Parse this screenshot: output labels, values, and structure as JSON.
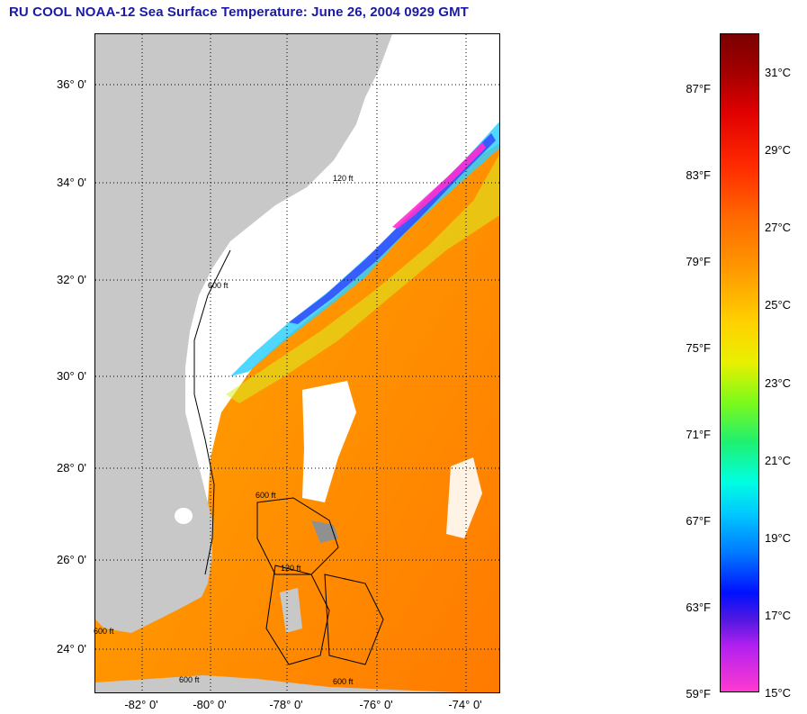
{
  "title": "RU COOL  NOAA-12  Sea Surface Temperature:  June 26, 2004 0929 GMT",
  "map": {
    "lat_ticks": [
      "36° 0'",
      "34° 0'",
      "32° 0'",
      "30° 0'",
      "28° 0'",
      "26° 0'",
      "24° 0'"
    ],
    "lon_ticks": [
      "-82° 0'",
      "-80° 0'",
      "-78° 0'",
      "-76° 0'",
      "-74° 0'"
    ],
    "contour_labels": [
      "600 ft",
      "120 ft",
      "600 ft",
      "120 ft",
      "600 ft",
      "600 ft",
      "600 ft"
    ]
  },
  "colorbar": {
    "fahrenheit": [
      "87°F",
      "83°F",
      "79°F",
      "75°F",
      "71°F",
      "67°F",
      "63°F",
      "59°F"
    ],
    "celsius": [
      "31°C",
      "29°C",
      "27°C",
      "25°C",
      "23°C",
      "21°C",
      "19°C",
      "17°C",
      "15°C"
    ]
  },
  "colors": {
    "land": "#c8c8c8",
    "cloud": "#ffffff",
    "title": "#1a1aa6"
  }
}
